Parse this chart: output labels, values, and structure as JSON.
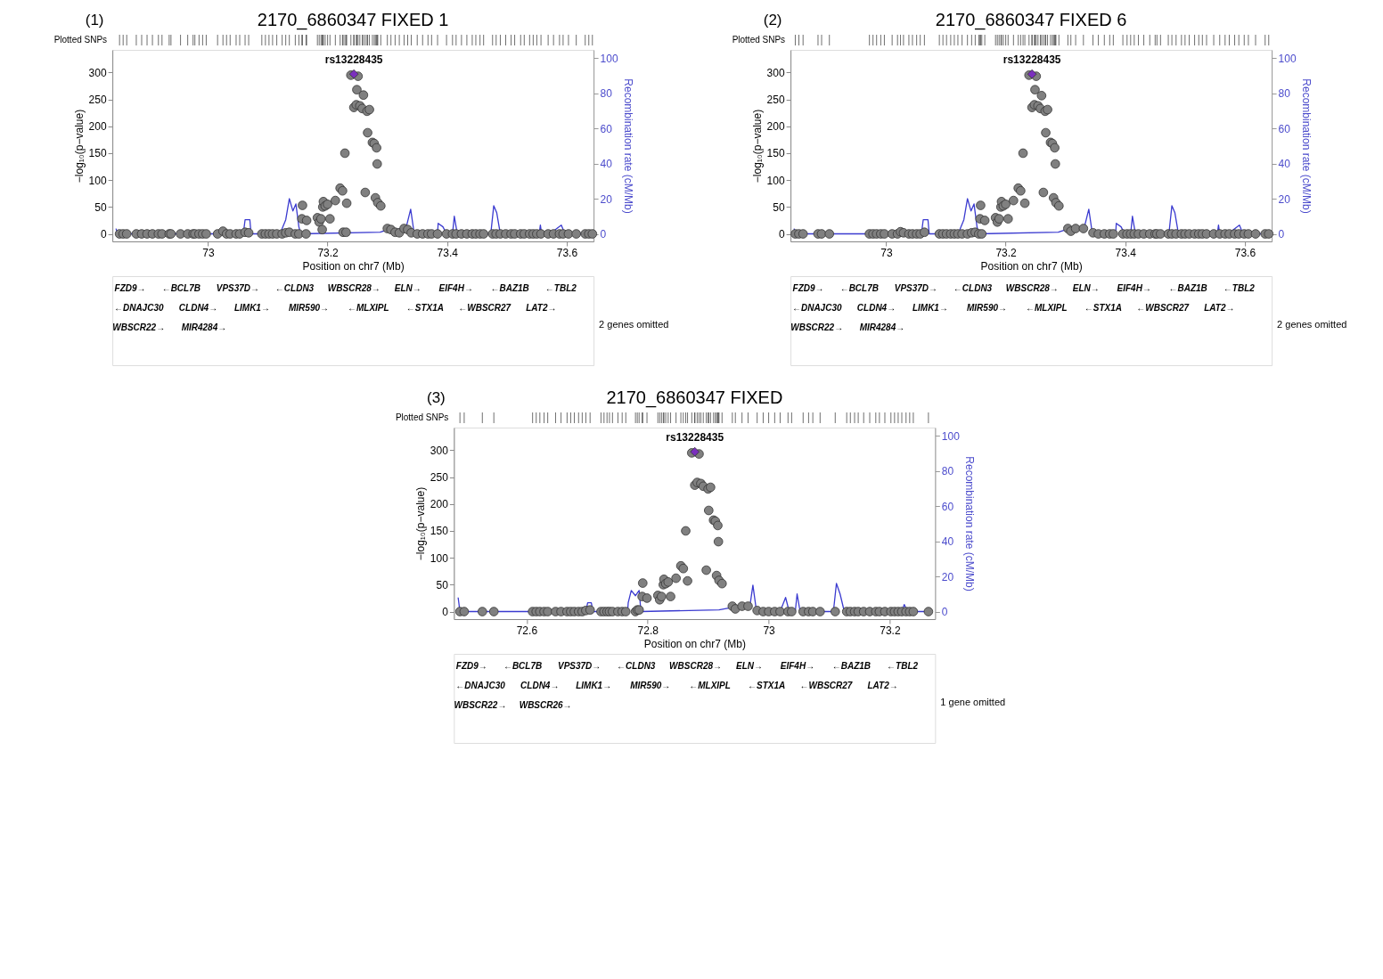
{
  "chart_data": [
    {
      "type": "scatter",
      "title": "2170_6860347 FIXED 1",
      "xlabel": "Position on chr7 (Mb)",
      "ylabel": "−log₁₀(p−value)",
      "y2label": "Recombination rate (cM/Mb)",
      "xlim": [
        72.84,
        73.645
      ],
      "xticks": [
        73,
        73.2,
        73.4,
        73.6
      ],
      "ylim": [
        -14,
        342
      ],
      "yticks": [
        0,
        50,
        100,
        150,
        200,
        250,
        300
      ],
      "y2lim": [
        -4.3,
        104.6
      ],
      "y2ticks": [
        0,
        20,
        40,
        60,
        80,
        100
      ],
      "grid": false,
      "legend": false,
      "marker": "circle",
      "series": [
        {
          "type": "scatter",
          "color": "#808080",
          "x": [
            72.852,
            72.858,
            72.864,
            72.88,
            72.889,
            72.898,
            72.907,
            72.917,
            72.923,
            72.935,
            72.938,
            72.954,
            72.966,
            72.975,
            72.978,
            72.985,
            72.991,
            72.997,
            73.016,
            73.025,
            73.031,
            73.037,
            73.047,
            73.053,
            73.062,
            73.068,
            73.09,
            73.096,
            73.102,
            73.108,
            73.115,
            73.124,
            73.13,
            73.136,
            73.146,
            73.152,
            73.164,
            73.158,
            73.157,
            73.165,
            73.183,
            73.186,
            73.189,
            73.191,
            73.192,
            73.193,
            73.196,
            73.2,
            73.204,
            73.213,
            73.221,
            73.225,
            73.229,
            73.232,
            73.226,
            73.231,
            73.239,
            73.251,
            73.244,
            73.248,
            73.254,
            73.258,
            73.249,
            73.26,
            73.266,
            73.27,
            73.267,
            73.275,
            73.278,
            73.282,
            73.283,
            73.263,
            73.28,
            73.284,
            73.289,
            73.3,
            73.306,
            73.313,
            73.32,
            73.328,
            73.334,
            73.34,
            73.35,
            73.359,
            73.368,
            73.374,
            73.384,
            73.399,
            73.409,
            73.415,
            73.424,
            73.433,
            73.442,
            73.448,
            73.455,
            73.461,
            73.476,
            73.482,
            73.489,
            73.498,
            73.507,
            73.513,
            73.523,
            73.529,
            73.538,
            73.544,
            73.55,
            73.557,
            73.569,
            73.578,
            73.588,
            73.594,
            73.603,
            73.616,
            73.631,
            73.637,
            73.643
          ],
          "values": [
            0,
            0,
            0,
            0,
            0,
            0,
            0,
            0,
            0,
            0,
            0,
            0,
            0,
            0,
            0,
            0,
            0,
            0,
            0,
            5,
            0,
            0,
            0,
            0,
            3,
            2,
            0,
            0,
            0,
            0,
            0,
            0,
            2,
            3,
            0,
            0,
            0,
            53,
            28,
            25,
            30,
            22,
            28,
            8,
            50,
            60,
            52,
            55,
            28,
            62,
            85,
            80,
            150,
            57,
            3,
            3,
            295,
            293,
            235,
            240,
            238,
            233,
            268,
            258,
            228,
            231,
            188,
            170,
            168,
            160,
            130,
            77,
            67,
            58,
            52,
            10,
            8,
            3,
            2,
            10,
            8,
            2,
            0,
            0,
            0,
            0,
            0,
            0,
            0,
            0,
            0,
            0,
            0,
            0,
            0,
            0,
            0,
            0,
            0,
            0,
            0,
            0,
            0,
            0,
            0,
            0,
            0,
            0,
            0,
            0,
            0,
            0,
            0,
            0,
            0,
            0,
            0
          ]
        },
        {
          "type": "scatter",
          "marker": "diamond",
          "color": "#7b2fbe",
          "x": [
            73.244
          ],
          "values": [
            297
          ]
        },
        {
          "type": "line",
          "axis": "y2",
          "marker": "none",
          "color": "#3b3bd0",
          "x": [
            72.846,
            72.849,
            73.059,
            73.062,
            73.07,
            73.072,
            73.121,
            73.124,
            73.13,
            73.136,
            73.142,
            73.147,
            73.152,
            73.155,
            73.288,
            73.297,
            73.331,
            73.339,
            73.345,
            73.384,
            73.385,
            73.393,
            73.399,
            73.409,
            73.412,
            73.417,
            73.473,
            73.478,
            73.483,
            73.489,
            73.554,
            73.556,
            73.558,
            73.572,
            73.591,
            73.597,
            73.645
          ],
          "values": [
            3,
            0,
            0,
            8,
            8,
            0,
            0,
            3,
            8,
            20,
            13,
            17,
            4,
            0,
            1,
            2,
            3,
            14,
            0,
            0,
            6,
            4,
            0,
            0,
            10,
            0,
            0,
            16,
            12,
            0,
            0,
            5,
            0,
            0,
            5,
            0,
            0
          ]
        }
      ],
      "annotations": [
        "(1)",
        "Plotted SNPs",
        "rs13228435",
        "FZD9→",
        "←BCL7B",
        "VPS37D→",
        "←CLDN3",
        "WBSCR28→",
        "ELN→",
        "EIF4H→",
        "←BAZ1B",
        "←TBL2",
        "←DNAJC30",
        "CLDN4→",
        "LIMK1→",
        "MIR590→",
        "←MLXIPL",
        "←STX1A",
        "←WBSCR27",
        "LAT2→",
        "WBSCR22→",
        "MIR4284→",
        "2 genes omitted"
      ]
    },
    {
      "type": "scatter",
      "title": "2170_6860347 FIXED 6",
      "xlabel": "Position on chr7 (Mb)",
      "ylabel": "−log₁₀(p−value)",
      "y2label": "Recombination rate (cM/Mb)",
      "xlim": [
        72.84,
        73.645
      ],
      "xticks": [
        73,
        73.2,
        73.4,
        73.6
      ],
      "ylim": [
        -14,
        342
      ],
      "yticks": [
        0,
        50,
        100,
        150,
        200,
        250,
        300
      ],
      "y2lim": [
        -4.3,
        104.6
      ],
      "y2ticks": [
        0,
        20,
        40,
        60,
        80,
        100
      ],
      "grid": false,
      "legend": false,
      "marker": "circle",
      "series": [
        {
          "type": "scatter",
          "color": "#808080",
          "x": [
            72.848,
            72.854,
            72.861,
            72.886,
            72.892,
            72.905,
            72.972,
            72.978,
            72.984,
            72.991,
            72.997,
            73.01,
            73.019,
            73.024,
            73.029,
            73.038,
            73.044,
            73.051,
            73.057,
            73.064,
            73.089,
            73.095,
            73.101,
            73.108,
            73.114,
            73.12,
            73.127,
            73.136,
            73.143,
            73.149,
            73.155,
            73.16,
            73.158,
            73.157,
            73.165,
            73.183,
            73.186,
            73.189,
            73.192,
            73.193,
            73.196,
            73.2,
            73.204,
            73.213,
            73.221,
            73.225,
            73.229,
            73.232,
            73.239,
            73.251,
            73.244,
            73.248,
            73.254,
            73.258,
            73.249,
            73.26,
            73.266,
            73.27,
            73.267,
            73.275,
            73.278,
            73.282,
            73.283,
            73.263,
            73.28,
            73.284,
            73.289,
            73.304,
            73.309,
            73.317,
            73.33,
            73.346,
            73.355,
            73.365,
            73.374,
            73.38,
            73.396,
            73.403,
            73.409,
            73.415,
            73.422,
            73.431,
            73.441,
            73.45,
            73.453,
            73.459,
            73.472,
            73.478,
            73.485,
            73.494,
            73.5,
            73.507,
            73.516,
            73.523,
            73.529,
            73.536,
            73.548,
            73.558,
            73.567,
            73.574,
            73.583,
            73.59,
            73.599,
            73.606,
            73.618,
            73.634,
            73.64
          ],
          "values": [
            0,
            0,
            0,
            0,
            0,
            0,
            0,
            0,
            0,
            0,
            0,
            0,
            0,
            4,
            2,
            0,
            0,
            0,
            0,
            3,
            0,
            0,
            0,
            0,
            0,
            0,
            0,
            0,
            2,
            3,
            0,
            0,
            53,
            28,
            25,
            30,
            22,
            28,
            50,
            60,
            52,
            55,
            28,
            62,
            85,
            80,
            150,
            57,
            295,
            293,
            235,
            240,
            238,
            233,
            268,
            257,
            228,
            231,
            188,
            170,
            168,
            160,
            130,
            77,
            67,
            58,
            52,
            10,
            5,
            10,
            10,
            2,
            0,
            0,
            0,
            0,
            0,
            0,
            0,
            0,
            0,
            0,
            0,
            0,
            0,
            0,
            0,
            0,
            0,
            0,
            0,
            0,
            0,
            0,
            0,
            0,
            0,
            0,
            0,
            0,
            0,
            0,
            0,
            0,
            0,
            0,
            0
          ]
        },
        {
          "type": "scatter",
          "marker": "diamond",
          "color": "#7b2fbe",
          "x": [
            73.244
          ],
          "values": [
            297
          ]
        },
        {
          "type": "line",
          "axis": "y2",
          "marker": "none",
          "color": "#3b3bd0",
          "x": [
            72.846,
            72.849,
            73.059,
            73.062,
            73.07,
            73.072,
            73.121,
            73.124,
            73.13,
            73.136,
            73.142,
            73.147,
            73.152,
            73.155,
            73.288,
            73.297,
            73.331,
            73.339,
            73.345,
            73.384,
            73.385,
            73.393,
            73.399,
            73.409,
            73.412,
            73.417,
            73.473,
            73.478,
            73.483,
            73.489,
            73.554,
            73.556,
            73.558,
            73.572,
            73.591,
            73.597,
            73.645
          ],
          "values": [
            3,
            0,
            0,
            8,
            8,
            0,
            0,
            3,
            8,
            20,
            13,
            17,
            4,
            0,
            1,
            2,
            3,
            14,
            0,
            0,
            6,
            4,
            0,
            0,
            10,
            0,
            0,
            16,
            12,
            0,
            0,
            5,
            0,
            0,
            5,
            0,
            0
          ]
        }
      ],
      "annotations": [
        "(2)",
        "Plotted SNPs",
        "rs13228435",
        "FZD9→",
        "←BCL7B",
        "VPS37D→",
        "←CLDN3",
        "WBSCR28→",
        "ELN→",
        "EIF4H→",
        "←BAZ1B",
        "←TBL2",
        "←DNAJC30",
        "CLDN4→",
        "LIMK1→",
        "MIR590→",
        "←MLXIPL",
        "←STX1A",
        "←WBSCR27",
        "LAT2→",
        "WBSCR22→",
        "MIR4284→",
        "2 genes omitted"
      ]
    },
    {
      "type": "scatter",
      "title": "2170_6860347 FIXED",
      "xlabel": "Position on chr7 (Mb)",
      "ylabel": "−log₁₀(p−value)",
      "y2label": "Recombination rate (cM/Mb)",
      "xlim": [
        72.48,
        73.275
      ],
      "xticks": [
        72.6,
        72.8,
        73,
        73.2
      ],
      "ylim": [
        -14,
        342
      ],
      "yticks": [
        0,
        50,
        100,
        150,
        200,
        250,
        300
      ],
      "y2lim": [
        -4.3,
        104.6
      ],
      "y2ticks": [
        0,
        20,
        40,
        60,
        80,
        100
      ],
      "grid": false,
      "legend": false,
      "marker": "circle",
      "series": [
        {
          "type": "scatter",
          "color": "#808080",
          "x": [
            72.49,
            72.497,
            72.527,
            72.546,
            72.61,
            72.616,
            72.622,
            72.629,
            72.635,
            72.648,
            72.657,
            72.667,
            72.673,
            72.679,
            72.686,
            72.692,
            72.698,
            72.705,
            72.723,
            72.728,
            72.733,
            72.737,
            72.742,
            72.751,
            72.758,
            72.764,
            72.78,
            72.783,
            72.786,
            72.792,
            72.791,
            72.799,
            72.817,
            72.82,
            72.823,
            72.826,
            72.827,
            72.83,
            72.834,
            72.838,
            72.847,
            72.855,
            72.859,
            72.863,
            72.866,
            72.873,
            72.885,
            72.878,
            72.882,
            72.888,
            72.892,
            72.9,
            72.904,
            72.901,
            72.909,
            72.912,
            72.916,
            72.917,
            72.897,
            72.914,
            72.918,
            72.923,
            72.94,
            72.945,
            72.956,
            72.966,
            72.981,
            72.991,
            73.0,
            73.01,
            73.019,
            73.032,
            73.038,
            73.057,
            73.066,
            73.073,
            73.085,
            73.11,
            73.129,
            73.135,
            73.142,
            73.148,
            73.157,
            73.167,
            73.177,
            73.183,
            73.192,
            73.202,
            73.208,
            73.214,
            73.22,
            73.227,
            73.233,
            73.239,
            73.264
          ],
          "values": [
            0,
            0,
            0,
            0,
            0,
            0,
            0,
            0,
            0,
            0,
            0,
            0,
            0,
            0,
            0,
            0,
            2,
            3,
            0,
            0,
            0,
            0,
            0,
            0,
            0,
            0,
            0,
            3,
            3,
            53,
            28,
            25,
            30,
            22,
            28,
            50,
            60,
            52,
            55,
            28,
            62,
            85,
            80,
            150,
            57,
            295,
            293,
            235,
            240,
            238,
            233,
            228,
            231,
            188,
            170,
            168,
            160,
            130,
            77,
            67,
            58,
            52,
            10,
            5,
            10,
            10,
            2,
            0,
            0,
            0,
            0,
            0,
            0,
            0,
            0,
            0,
            0,
            0,
            0,
            0,
            0,
            0,
            0,
            0,
            0,
            0,
            0,
            0,
            0,
            0,
            0,
            0,
            0,
            0,
            0
          ]
        },
        {
          "type": "scatter",
          "marker": "diamond",
          "color": "#7b2fbe",
          "x": [
            72.878
          ],
          "values": [
            297
          ]
        },
        {
          "type": "line",
          "axis": "y2",
          "marker": "none",
          "color": "#3b3bd0",
          "x": [
            72.487,
            72.49,
            72.698,
            72.701,
            72.707,
            72.71,
            72.767,
            72.768,
            72.773,
            72.78,
            72.786,
            72.789,
            72.918,
            72.934,
            72.969,
            72.974,
            72.98,
            73.019,
            73.028,
            73.034,
            73.044,
            73.047,
            73.052,
            73.107,
            73.112,
            73.118,
            73.125,
            73.22,
            73.224,
            73.229,
            73.268
          ],
          "values": [
            8,
            0,
            0,
            5,
            5,
            0,
            0,
            5,
            12,
            9,
            12,
            0,
            1,
            2,
            3,
            15,
            0,
            0,
            8,
            0,
            0,
            10,
            0,
            0,
            16,
            10,
            0,
            0,
            4,
            0,
            0
          ]
        }
      ],
      "annotations": [
        "(3)",
        "Plotted SNPs",
        "rs13228435",
        "FZD9→",
        "←BCL7B",
        "VPS37D→",
        "←CLDN3",
        "WBSCR28→",
        "ELN→",
        "EIF4H→",
        "←BAZ1B",
        "←TBL2",
        "←DNAJC30",
        "CLDN4→",
        "LIMK1→",
        "MIR590→",
        "←MLXIPL",
        "←STX1A",
        "←WBSCR27",
        "LAT2→",
        "WBSCR22→",
        "WBSCR26→",
        "1 gene omitted"
      ]
    }
  ]
}
